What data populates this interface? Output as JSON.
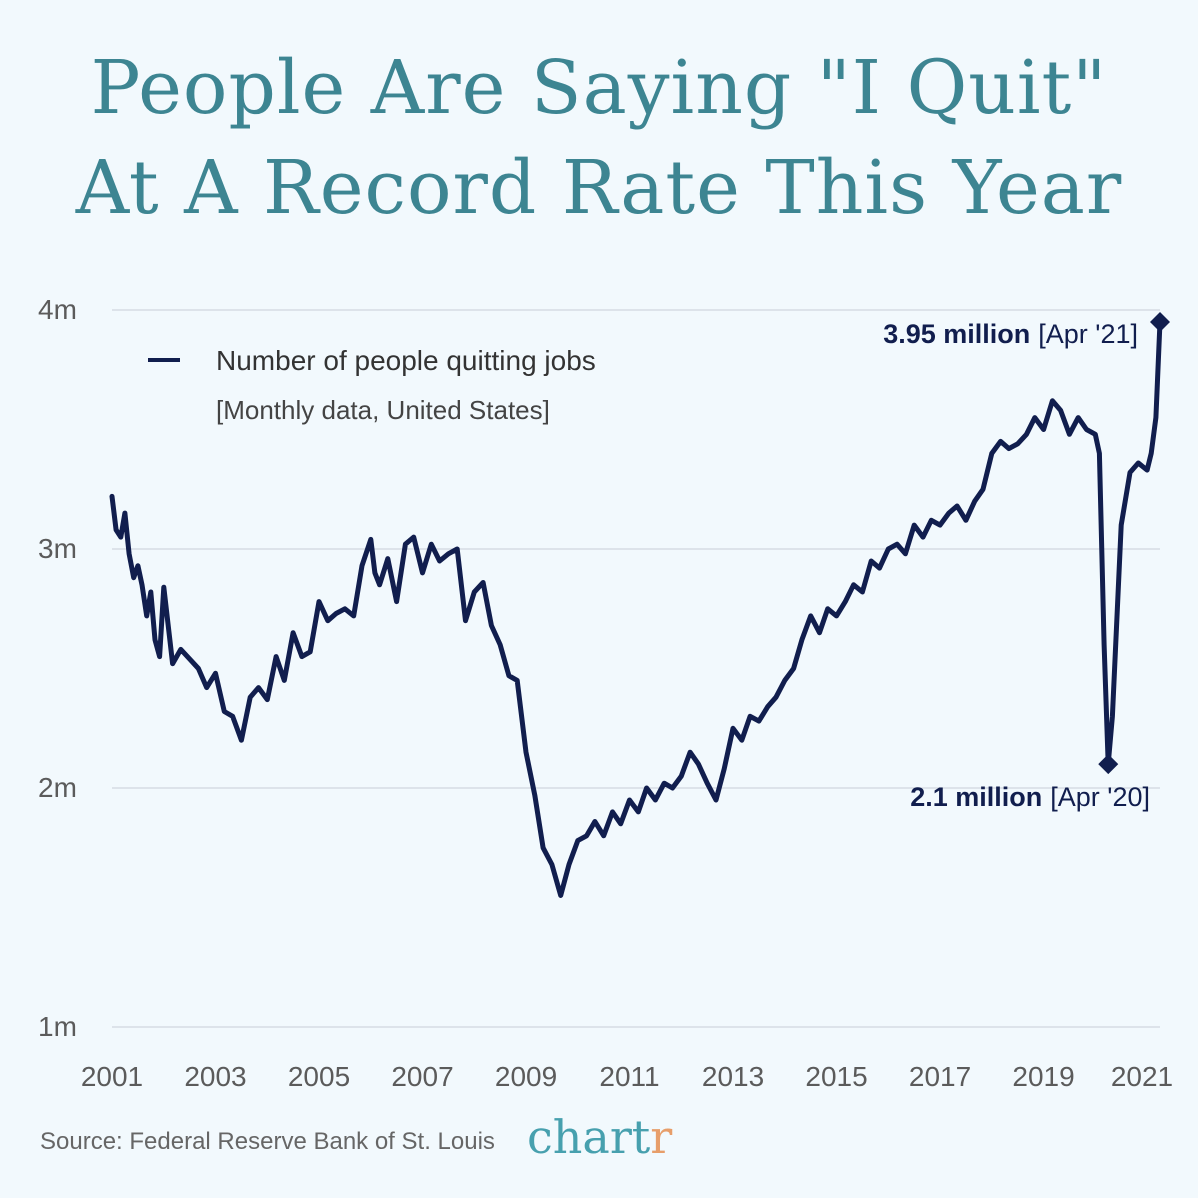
{
  "title": {
    "line1": "People Are Saying \"I Quit\"",
    "line2": "At A Record Rate This Year"
  },
  "legend": {
    "label": "Number of people quitting jobs",
    "sublabel": "[Monthly data, United States]"
  },
  "annotations": {
    "peak": {
      "value_label": "3.95 million",
      "date_label": "[Apr '21]",
      "x": 2021.25,
      "y": 3.95
    },
    "trough": {
      "value_label": "2.1 million",
      "date_label": "[Apr '20]",
      "x": 2020.25,
      "y": 2.1
    }
  },
  "source": "Source: Federal Reserve Bank of St. Louis",
  "brand": {
    "main": "chart",
    "accent": "r"
  },
  "colors": {
    "background": "#F2F9FD",
    "title": "#3D8592",
    "line": "#111E4E",
    "grid": "#D6DCE3",
    "brand": "#47A0AE",
    "brand_accent": "#E79E6A"
  },
  "chart_data": {
    "type": "line",
    "title": "People Are Saying \"I Quit\" At A Record Rate This Year",
    "xlabel": "",
    "ylabel": "",
    "ylim": [
      1,
      4
    ],
    "xlim": [
      2001,
      2021.3
    ],
    "y_ticks": [
      1,
      2,
      3,
      4
    ],
    "y_tick_labels": [
      "1m",
      "2m",
      "3m",
      "4m"
    ],
    "x_ticks": [
      2001,
      2003,
      2005,
      2007,
      2009,
      2011,
      2013,
      2015,
      2017,
      2019,
      2021
    ],
    "x_tick_labels": [
      "2001",
      "2003",
      "2005",
      "2007",
      "2009",
      "2011",
      "2013",
      "2015",
      "2017",
      "2019",
      "2021"
    ],
    "grid": true,
    "legend_position": "top-left",
    "series": [
      {
        "name": "Number of people quitting jobs",
        "unit": "millions",
        "x": [
          2001.0,
          2001.08,
          2001.17,
          2001.25,
          2001.33,
          2001.42,
          2001.5,
          2001.58,
          2001.67,
          2001.75,
          2001.83,
          2001.92,
          2002.0,
          2002.17,
          2002.33,
          2002.5,
          2002.67,
          2002.83,
          2003.0,
          2003.17,
          2003.33,
          2003.5,
          2003.67,
          2003.83,
          2004.0,
          2004.17,
          2004.33,
          2004.5,
          2004.67,
          2004.83,
          2005.0,
          2005.17,
          2005.33,
          2005.5,
          2005.67,
          2005.83,
          2006.0,
          2006.08,
          2006.17,
          2006.33,
          2006.5,
          2006.67,
          2006.83,
          2007.0,
          2007.17,
          2007.33,
          2007.5,
          2007.67,
          2007.83,
          2008.0,
          2008.17,
          2008.33,
          2008.5,
          2008.67,
          2008.83,
          2009.0,
          2009.17,
          2009.33,
          2009.5,
          2009.67,
          2009.83,
          2010.0,
          2010.17,
          2010.33,
          2010.5,
          2010.67,
          2010.83,
          2011.0,
          2011.17,
          2011.33,
          2011.5,
          2011.67,
          2011.83,
          2012.0,
          2012.17,
          2012.33,
          2012.5,
          2012.67,
          2012.83,
          2013.0,
          2013.17,
          2013.33,
          2013.5,
          2013.67,
          2013.83,
          2014.0,
          2014.17,
          2014.33,
          2014.5,
          2014.67,
          2014.83,
          2015.0,
          2015.17,
          2015.33,
          2015.5,
          2015.67,
          2015.83,
          2016.0,
          2016.17,
          2016.33,
          2016.5,
          2016.67,
          2016.83,
          2017.0,
          2017.17,
          2017.33,
          2017.5,
          2017.67,
          2017.83,
          2018.0,
          2018.17,
          2018.33,
          2018.5,
          2018.67,
          2018.83,
          2019.0,
          2019.17,
          2019.33,
          2019.5,
          2019.67,
          2019.83,
          2020.0,
          2020.08,
          2020.17,
          2020.25,
          2020.33,
          2020.5,
          2020.67,
          2020.83,
          2021.0,
          2021.08,
          2021.17,
          2021.25
        ],
        "values": [
          3.22,
          3.08,
          3.05,
          3.15,
          2.98,
          2.88,
          2.93,
          2.85,
          2.72,
          2.82,
          2.62,
          2.55,
          2.84,
          2.52,
          2.58,
          2.54,
          2.5,
          2.42,
          2.48,
          2.32,
          2.3,
          2.2,
          2.38,
          2.42,
          2.37,
          2.55,
          2.45,
          2.65,
          2.55,
          2.57,
          2.78,
          2.7,
          2.73,
          2.75,
          2.72,
          2.93,
          3.04,
          2.9,
          2.85,
          2.96,
          2.78,
          3.02,
          3.05,
          2.9,
          3.02,
          2.95,
          2.98,
          3.0,
          2.7,
          2.82,
          2.86,
          2.68,
          2.6,
          2.47,
          2.45,
          2.15,
          1.97,
          1.75,
          1.68,
          1.55,
          1.68,
          1.78,
          1.8,
          1.86,
          1.8,
          1.9,
          1.85,
          1.95,
          1.9,
          2.0,
          1.95,
          2.02,
          2.0,
          2.05,
          2.15,
          2.1,
          2.02,
          1.95,
          2.08,
          2.25,
          2.2,
          2.3,
          2.28,
          2.34,
          2.38,
          2.45,
          2.5,
          2.62,
          2.72,
          2.65,
          2.75,
          2.72,
          2.78,
          2.85,
          2.82,
          2.95,
          2.92,
          3.0,
          3.02,
          2.98,
          3.1,
          3.05,
          3.12,
          3.1,
          3.15,
          3.18,
          3.12,
          3.2,
          3.25,
          3.4,
          3.45,
          3.42,
          3.44,
          3.48,
          3.55,
          3.5,
          3.62,
          3.58,
          3.48,
          3.55,
          3.5,
          3.48,
          3.4,
          2.6,
          2.1,
          2.3,
          3.1,
          3.32,
          3.36,
          3.33,
          3.4,
          3.55,
          3.95
        ]
      }
    ]
  }
}
